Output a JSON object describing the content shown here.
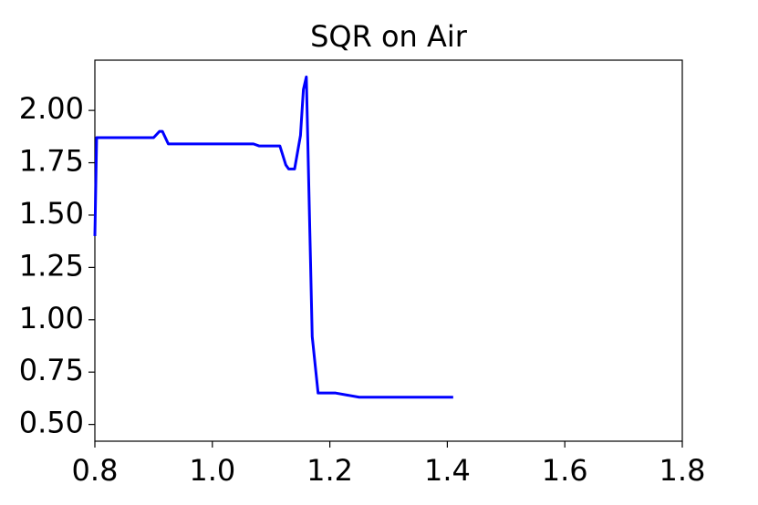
{
  "chart_data": {
    "type": "line",
    "title": "SQR on Air",
    "x": [
      0.8,
      0.803,
      0.9,
      0.91,
      0.915,
      0.925,
      1.07,
      1.08,
      1.115,
      1.125,
      1.13,
      1.14,
      1.15,
      1.155,
      1.16,
      1.17,
      1.18,
      1.21,
      1.23,
      1.25,
      1.41
    ],
    "series": [
      {
        "color": "#0000ff",
        "values": [
          1.4,
          1.87,
          1.87,
          1.9,
          1.9,
          1.84,
          1.84,
          1.83,
          1.83,
          1.74,
          1.72,
          1.72,
          1.88,
          2.1,
          2.16,
          0.92,
          0.65,
          0.65,
          0.64,
          0.63,
          0.63
        ]
      }
    ],
    "xlim": [
      0.8,
      1.8
    ],
    "xticks": [
      0.8,
      {
        "value": 1.0,
        "label": "1.0"
      },
      1.2,
      1.4,
      1.6,
      1.8
    ],
    "ylim": [
      0.42,
      2.24
    ],
    "yticks": [
      {
        "value": 0.5,
        "label": "0.50"
      },
      {
        "value": 0.75,
        "label": "0.75"
      },
      {
        "value": 1.0,
        "label": "1.00"
      },
      {
        "value": 1.25,
        "label": "1.25"
      },
      {
        "value": 1.5,
        "label": "1.50"
      },
      {
        "value": 1.75,
        "label": "1.75"
      },
      {
        "value": 2.0,
        "label": "2.00"
      }
    ]
  }
}
